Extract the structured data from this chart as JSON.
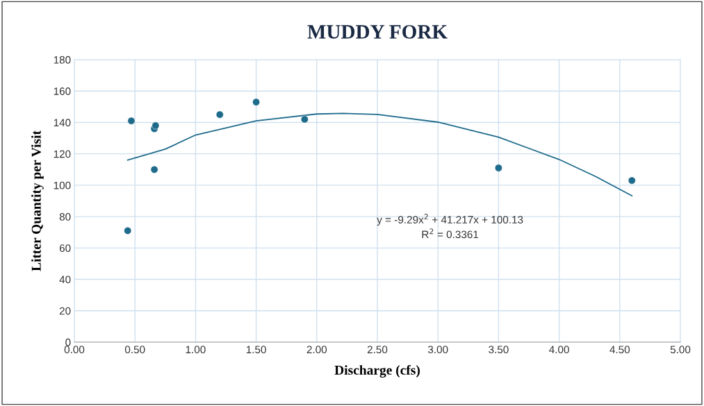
{
  "chart_data": {
    "type": "scatter",
    "title": "MUDDY FORK",
    "xlabel": "Discharge (cfs)",
    "ylabel": "Litter Quantity per Visit",
    "xlim": [
      0,
      5
    ],
    "xticks": [
      {
        "value": 0,
        "label": "0.00"
      },
      {
        "value": 0.5,
        "label": "0.50"
      },
      {
        "value": 1,
        "label": "1.00"
      },
      {
        "value": 1.5,
        "label": "1.50"
      },
      {
        "value": 2,
        "label": "2.00"
      },
      {
        "value": 2.5,
        "label": "2.50"
      },
      {
        "value": 3,
        "label": "3.00"
      },
      {
        "value": 3.5,
        "label": "3.50"
      },
      {
        "value": 4,
        "label": "4.00"
      },
      {
        "value": 4.5,
        "label": "4.50"
      },
      {
        "value": 5,
        "label": "5.00"
      }
    ],
    "ylim": [
      0,
      180
    ],
    "yticks": [
      0,
      20,
      40,
      60,
      80,
      100,
      120,
      140,
      160,
      180
    ],
    "grid": true,
    "legend": false,
    "series": [
      {
        "marker": "circle",
        "color": "#1f6b8c",
        "x": [
          0.44,
          0.47,
          0.66,
          0.67,
          0.66,
          1.2,
          1.5,
          1.9,
          3.5,
          4.6
        ],
        "values": [
          71,
          141,
          136,
          138,
          110,
          145,
          153,
          142,
          111,
          103
        ]
      },
      {
        "type": "line",
        "marker": "none",
        "color": "#1f6b8c",
        "x": [
          0.44,
          0.75,
          1.0,
          1.5,
          2.0,
          2.22,
          2.5,
          3.0,
          3.5,
          4.0,
          4.3,
          4.6
        ],
        "values": [
          116,
          123,
          132,
          141,
          145.4,
          145.8,
          145.1,
          140.2,
          130.6,
          116.4,
          105.6,
          93.3
        ]
      }
    ],
    "annotations": [
      "y = -9.29x$^{2}$ + 41.217x + 100.13",
      "R$^{2}$ = 0.3361"
    ]
  }
}
